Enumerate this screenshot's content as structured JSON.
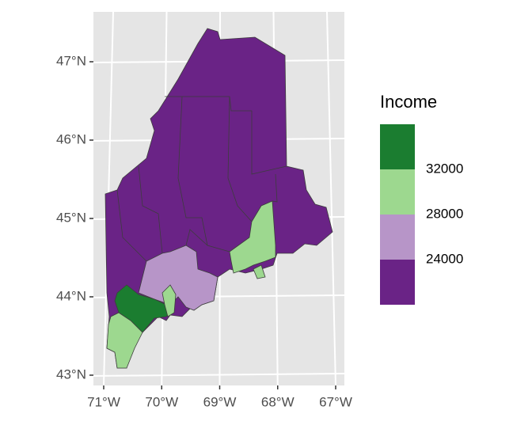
{
  "map": {
    "lat_ticks": [
      {
        "value": 43,
        "label": "43°N"
      },
      {
        "value": 44,
        "label": "44°N"
      },
      {
        "value": 45,
        "label": "45°N"
      },
      {
        "value": 46,
        "label": "46°N"
      },
      {
        "value": 47,
        "label": "47°N"
      }
    ],
    "lon_ticks": [
      {
        "value": -71,
        "label": "71°W"
      },
      {
        "value": -70,
        "label": "70°W"
      },
      {
        "value": -69,
        "label": "69°W"
      },
      {
        "value": -68,
        "label": "68°W"
      },
      {
        "value": -67,
        "label": "67°W"
      }
    ],
    "legend": {
      "title": "Income",
      "breaks": [
        24000,
        28000,
        32000
      ],
      "colors": [
        "#6a2386",
        "#b795c8",
        "#9dd88f",
        "#1b7d30"
      ]
    },
    "panel_color": "#e5e5e5"
  }
}
